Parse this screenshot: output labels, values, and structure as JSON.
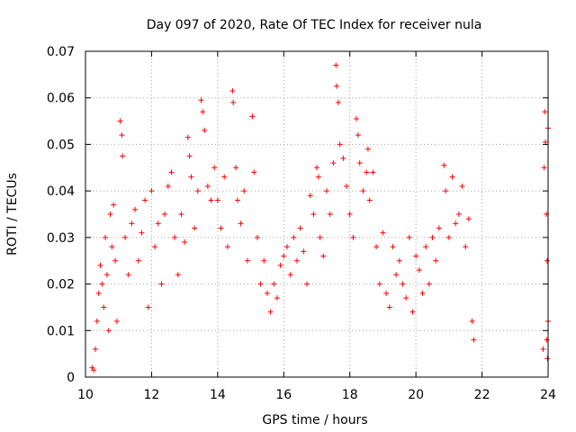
{
  "chart_data": {
    "type": "scatter",
    "title": "Day 097 of 2020, Rate Of TEC Index for receiver nula",
    "xlabel": "GPS time / hours",
    "ylabel": "ROTI / TECUs",
    "xlim": [
      10,
      24
    ],
    "ylim": [
      0,
      0.07
    ],
    "xticks": [
      10,
      12,
      14,
      16,
      18,
      20,
      22,
      24
    ],
    "yticks": [
      0,
      0.01,
      0.02,
      0.03,
      0.04,
      0.05,
      0.06,
      0.07
    ],
    "ytick_labels": [
      "0",
      "0.01",
      "0.02",
      "0.03",
      "0.04",
      "0.05",
      "0.06",
      "0.07"
    ],
    "grid": true,
    "marker": "+",
    "color": "#ff0000",
    "points": [
      [
        10.2,
        0.002
      ],
      [
        10.25,
        0.0015
      ],
      [
        10.3,
        0.006
      ],
      [
        10.35,
        0.012
      ],
      [
        10.4,
        0.018
      ],
      [
        10.45,
        0.024
      ],
      [
        10.5,
        0.02
      ],
      [
        10.55,
        0.015
      ],
      [
        10.6,
        0.03
      ],
      [
        10.65,
        0.022
      ],
      [
        10.7,
        0.01
      ],
      [
        10.75,
        0.035
      ],
      [
        10.8,
        0.028
      ],
      [
        10.85,
        0.037
      ],
      [
        10.9,
        0.025
      ],
      [
        10.95,
        0.012
      ],
      [
        11.05,
        0.055
      ],
      [
        11.1,
        0.052
      ],
      [
        11.12,
        0.0475
      ],
      [
        11.2,
        0.03
      ],
      [
        11.3,
        0.022
      ],
      [
        11.4,
        0.033
      ],
      [
        11.5,
        0.036
      ],
      [
        11.6,
        0.025
      ],
      [
        11.7,
        0.031
      ],
      [
        11.8,
        0.038
      ],
      [
        11.9,
        0.015
      ],
      [
        12.0,
        0.04
      ],
      [
        12.1,
        0.028
      ],
      [
        12.2,
        0.033
      ],
      [
        12.3,
        0.02
      ],
      [
        12.4,
        0.035
      ],
      [
        12.5,
        0.041
      ],
      [
        12.6,
        0.044
      ],
      [
        12.7,
        0.03
      ],
      [
        12.8,
        0.022
      ],
      [
        12.9,
        0.035
      ],
      [
        13.0,
        0.029
      ],
      [
        13.1,
        0.0515
      ],
      [
        13.15,
        0.0475
      ],
      [
        13.2,
        0.043
      ],
      [
        13.3,
        0.032
      ],
      [
        13.4,
        0.04
      ],
      [
        13.5,
        0.0595
      ],
      [
        13.55,
        0.057
      ],
      [
        13.6,
        0.053
      ],
      [
        13.7,
        0.041
      ],
      [
        13.8,
        0.038
      ],
      [
        13.9,
        0.045
      ],
      [
        14.0,
        0.038
      ],
      [
        14.1,
        0.032
      ],
      [
        14.2,
        0.043
      ],
      [
        14.3,
        0.028
      ],
      [
        14.45,
        0.0615
      ],
      [
        14.47,
        0.059
      ],
      [
        14.55,
        0.045
      ],
      [
        14.6,
        0.038
      ],
      [
        14.7,
        0.033
      ],
      [
        14.8,
        0.04
      ],
      [
        14.9,
        0.025
      ],
      [
        15.05,
        0.056
      ],
      [
        15.1,
        0.044
      ],
      [
        15.2,
        0.03
      ],
      [
        15.3,
        0.02
      ],
      [
        15.4,
        0.025
      ],
      [
        15.5,
        0.018
      ],
      [
        15.6,
        0.014
      ],
      [
        15.7,
        0.02
      ],
      [
        15.8,
        0.017
      ],
      [
        15.9,
        0.024
      ],
      [
        16.0,
        0.026
      ],
      [
        16.1,
        0.028
      ],
      [
        16.2,
        0.022
      ],
      [
        16.3,
        0.03
      ],
      [
        16.4,
        0.025
      ],
      [
        16.5,
        0.032
      ],
      [
        16.6,
        0.027
      ],
      [
        16.7,
        0.02
      ],
      [
        16.8,
        0.039
      ],
      [
        16.9,
        0.035
      ],
      [
        17.0,
        0.045
      ],
      [
        17.05,
        0.043
      ],
      [
        17.1,
        0.03
      ],
      [
        17.2,
        0.026
      ],
      [
        17.3,
        0.04
      ],
      [
        17.4,
        0.035
      ],
      [
        17.5,
        0.046
      ],
      [
        17.58,
        0.067
      ],
      [
        17.6,
        0.0625
      ],
      [
        17.65,
        0.059
      ],
      [
        17.7,
        0.05
      ],
      [
        17.8,
        0.047
      ],
      [
        17.9,
        0.041
      ],
      [
        18.0,
        0.035
      ],
      [
        18.1,
        0.03
      ],
      [
        18.2,
        0.0555
      ],
      [
        18.25,
        0.052
      ],
      [
        18.3,
        0.046
      ],
      [
        18.4,
        0.04
      ],
      [
        18.5,
        0.044
      ],
      [
        18.55,
        0.049
      ],
      [
        18.6,
        0.038
      ],
      [
        18.7,
        0.044
      ],
      [
        18.8,
        0.028
      ],
      [
        18.9,
        0.02
      ],
      [
        19.0,
        0.031
      ],
      [
        19.1,
        0.018
      ],
      [
        19.2,
        0.015
      ],
      [
        19.3,
        0.028
      ],
      [
        19.4,
        0.022
      ],
      [
        19.5,
        0.025
      ],
      [
        19.6,
        0.02
      ],
      [
        19.7,
        0.017
      ],
      [
        19.8,
        0.03
      ],
      [
        19.9,
        0.014
      ],
      [
        20.0,
        0.026
      ],
      [
        20.1,
        0.023
      ],
      [
        20.2,
        0.018
      ],
      [
        20.3,
        0.028
      ],
      [
        20.4,
        0.02
      ],
      [
        20.5,
        0.03
      ],
      [
        20.6,
        0.025
      ],
      [
        20.7,
        0.032
      ],
      [
        20.85,
        0.0455
      ],
      [
        20.9,
        0.04
      ],
      [
        21.0,
        0.03
      ],
      [
        21.1,
        0.043
      ],
      [
        21.2,
        0.033
      ],
      [
        21.3,
        0.035
      ],
      [
        21.4,
        0.041
      ],
      [
        21.5,
        0.028
      ],
      [
        21.6,
        0.034
      ],
      [
        21.7,
        0.012
      ],
      [
        21.75,
        0.008
      ],
      [
        23.85,
        0.006
      ],
      [
        23.88,
        0.045
      ],
      [
        23.9,
        0.057
      ],
      [
        23.92,
        0.0505
      ],
      [
        23.95,
        0.035
      ],
      [
        23.97,
        0.025
      ],
      [
        24.0,
        0.012
      ],
      [
        24.0,
        0.0535
      ],
      [
        23.98,
        0.004
      ],
      [
        23.96,
        0.008
      ]
    ]
  }
}
